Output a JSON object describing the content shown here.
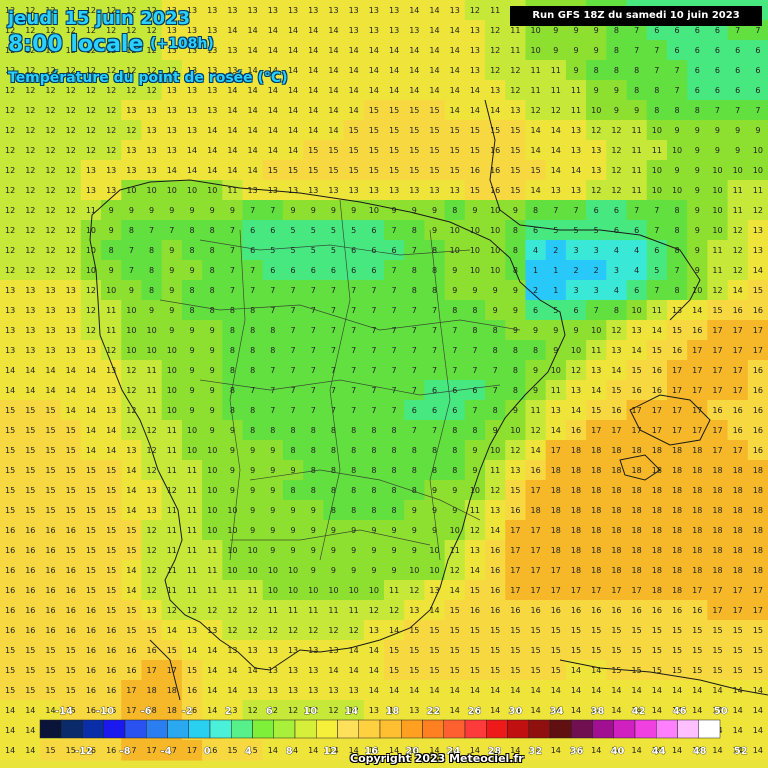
{
  "header": {
    "date": "jeudi 15 juin 2023",
    "time": "8:00 locale",
    "offset": "(+108h)",
    "variable": "Température du point de rosée (°C)",
    "run": "Run GFS 18Z du samedi 10 juin 2023"
  },
  "footer": {
    "copyright": "Copyright 2023 Meteociel.fr"
  },
  "legend": {
    "top_labels": [
      "-14",
      "-10",
      "-6",
      "-2",
      "2",
      "6",
      "10",
      "14",
      "18",
      "22",
      "26",
      "30",
      "34",
      "38",
      "42",
      "46",
      "50"
    ],
    "bottom_labels": [
      "-12",
      "-8",
      "-4",
      "0",
      "4",
      "8",
      "12",
      "16",
      "20",
      "24",
      "28",
      "32",
      "36",
      "40",
      "44",
      "48",
      "52"
    ],
    "colors": [
      "#0a1438",
      "#0b2a6a",
      "#0a2da8",
      "#1a1aee",
      "#2a52f0",
      "#2a7ef0",
      "#2aa8f0",
      "#2ad0f0",
      "#4af0d8",
      "#58f08a",
      "#7ef03a",
      "#a8f03a",
      "#d6f03a",
      "#f6f03a",
      "#ffe05a",
      "#ffd040",
      "#ffbf30",
      "#ffa020",
      "#ff8020",
      "#ff6030",
      "#ff3a3a",
      "#ee1a1a",
      "#c01010",
      "#901010",
      "#601010",
      "#701050",
      "#a01090",
      "#d020c0",
      "#f040e0",
      "#ff80ff",
      "#ffc0ff",
      "#ffffff"
    ]
  },
  "map": {
    "color_scale": [
      {
        "v": 1,
        "c": "#28c8f8"
      },
      {
        "v": 3,
        "c": "#3ae8d8"
      },
      {
        "v": 5,
        "c": "#48e880"
      },
      {
        "v": 7,
        "c": "#62e040"
      },
      {
        "v": 9,
        "c": "#8ee030"
      },
      {
        "v": 11,
        "c": "#c6e838"
      },
      {
        "v": 13,
        "c": "#eee43a"
      },
      {
        "v": 15,
        "c": "#f8d840"
      },
      {
        "v": 17,
        "c": "#f6b828"
      },
      {
        "v": 19,
        "c": "#f09818"
      }
    ],
    "rows": [
      "12 12 12 12 12 12 12 12 13 13 13 13 13 13 13 13 13 13 13 13 14 14 13 12 11 12 9 9 9 8 7 6 6 6 6 6 6 6",
      "12 12 12 12 12 12 12 12 13 13 13 14 14 14 14 14 14 13 13 13 13 14 14 13 12 11 10 9 9 9 8 7 6 6 6 6 7 7",
      "12 12 12 12 12 12 12 12 13 13 13 13 14 14 14 14 14 14 14 14 14 14 14 13 12 11 10 9 9 9 8 7 7 6 6 6 6 6",
      "12 12 12 12 12 12 12 12 12 13 13 13 14 14 14 14 14 14 14 14 14 14 14 13 12 12 11 11 9 8 8 8 7 7 6 6 6 6",
      "12 12 12 12 12 12 12 12 13 13 13 14 14 14 14 14 14 14 14 14 14 14 14 14 13 12 11 11 11 9 9 8 8 7 6 6 6 6",
      "12 12 12 12 12 12 13 13 13 13 13 14 14 14 14 14 14 14 15 15 15 15 14 14 14 13 12 12 11 10 9 9 8 8 8 7 7 7",
      "12 12 12 12 12 12 12 13 13 13 14 14 14 14 14 14 14 15 15 15 15 15 15 15 15 15 14 14 13 12 12 11 10 9 9 9 9 9",
      "12 12 12 12 12 12 13 13 13 14 14 14 14 14 14 15 15 15 15 15 15 15 15 15 16 15 14 14 13 13 12 11 11 10 9 9 9 10",
      "12 12 12 12 13 13 13 13 14 14 14 14 14 15 15 15 15 15 15 15 15 15 15 16 16 15 15 14 14 13 12 11 10 9 9 10 10 10",
      "12 12 12 12 13 13 10 10 10 10 10 11 13 13 13 13 13 13 13 13 13 13 13 15 16 15 14 13 13 12 12 11 10 10 9 10 11 11",
      "12 12 12 12 11 9 9 9 9 9 9 9 7 7 9 9 9 9 10 9 9 9 8 9 10 9 8 7 7 6 6 7 7 8 9 10 11 12",
      "12 12 12 12 10 9 8 7 7 8 8 7 6 6 5 5 5 5 6 7 8 9 10 10 10 8 6 5 5 5 6 6 7 8 9 10 12 13",
      "12 12 12 12 10 8 7 8 9 8 8 7 6 5 5 5 5 6 6 6 7 8 10 10 10 8 4 2 3 3 4 4 6 8 9 11 12 13",
      "12 12 12 12 10 9 7 8 9 9 8 7 7 6 6 6 6 6 6 7 8 8 9 10 10 8 1 1 2 2 3 4 5 7 9 11 12 14",
      "13 13 13 13 12 10 9 8 9 8 8 7 7 7 7 7 7 7 7 7 8 8 9 9 9 9 2 1 3 3 4 6 7 8 10 12 14 15",
      "13 13 13 13 12 11 10 9 9 8 8 8 8 7 7 7 7 7 7 7 7 7 8 8 9 9 6 5 6 7 8 10 11 13 14 15 16 16",
      "13 13 13 13 12 11 10 10 9 9 9 8 8 8 7 7 7 7 7 7 7 7 7 8 8 9 9 9 9 10 12 13 14 15 16 17 17 17",
      "13 13 13 13 13 12 10 10 10 9 9 8 8 8 7 7 7 7 7 7 7 7 7 7 8 8 8 9 10 11 13 14 15 16 17 17 17 17",
      "14 14 14 14 14 13 12 11 10 9 9 8 8 7 7 7 7 7 7 7 7 7 7 7 7 8 9 10 12 13 14 15 16 17 17 17 17 16",
      "14 14 14 14 14 13 12 11 10 9 9 8 7 7 7 7 7 7 7 7 7 6 6 6 7 8 9 11 13 14 15 16 16 17 17 17 17 16",
      "15 15 15 14 14 13 12 11 10 9 9 8 8 7 7 7 7 7 7 7 6 6 6 7 8 9 11 13 14 15 16 17 17 17 17 16 16 16",
      "15 15 15 15 14 14 12 12 11 10 9 9 8 8 8 8 8 8 8 8 7 7 8 8 9 10 12 14 16 17 17 17 17 17 17 17 16 16",
      "15 15 15 15 14 14 13 12 11 10 10 9 9 9 8 8 8 8 8 8 8 8 8 9 10 12 14 17 18 18 18 18 18 18 18 17 17 16",
      "15 15 15 15 15 15 14 12 11 11 10 9 9 9 9 8 8 8 8 8 8 8 8 9 11 13 16 18 18 18 18 18 18 18 18 18 18 18",
      "15 15 15 15 15 15 14 13 12 11 10 9 9 9 8 8 8 8 8 8 8 9 9 10 12 15 17 18 18 18 18 18 18 18 18 18 18 18",
      "15 15 15 15 15 15 14 13 11 11 10 10 9 9 9 9 8 8 8 8 9 9 9 11 13 16 18 18 18 18 18 18 18 18 18 18 18 18",
      "16 16 16 16 15 15 15 12 11 11 10 10 9 9 9 9 9 9 9 9 9 9 10 12 14 17 17 18 18 18 18 18 18 18 18 18 18 18",
      "16 16 16 15 15 15 15 12 11 11 11 10 10 9 9 9 9 9 9 9 9 10 11 13 16 17 17 18 18 18 18 18 18 18 18 18 18 18",
      "16 16 16 16 15 15 14 12 11 11 11 10 10 10 10 9 9 9 9 9 10 10 12 14 16 17 17 17 18 18 18 18 18 18 18 18 18 18",
      "16 16 16 16 15 15 14 12 11 11 11 11 11 10 10 10 10 10 10 11 12 13 14 15 16 17 17 17 17 17 17 17 18 18 17 17 17 17",
      "16 16 16 16 16 15 15 13 12 12 12 12 12 11 11 11 11 11 12 12 13 14 15 16 16 16 16 16 16 16 16 16 16 16 16 17 17 17",
      "16 16 16 16 16 16 15 15 14 13 13 12 12 12 12 12 12 12 13 14 15 15 15 15 15 15 15 15 15 15 15 15 15 15 15 15 15 15",
      "15 15 15 15 16 16 16 16 15 14 14 13 13 13 13 13 13 14 14 15 15 15 15 15 15 15 15 15 15 15 15 15 15 15 15 15 15 15",
      "15 15 15 15 16 16 16 17 17 15 14 14 14 13 13 13 14 14 14 15 15 15 15 15 15 15 15 15 14 14 15 15 15 15 15 15 15 15",
      "15 15 15 15 16 16 17 18 18 16 14 14 13 13 13 13 13 13 14 14 14 14 14 14 14 14 14 14 14 14 14 14 14 14 14 14 14 14",
      "14 14 14 15 16 16 17 18 18 16 14 13 12 12 12 12 12 12 13 13 13 13 14 14 14 14 14 14 14 14 14 14 14 14 14 14 14 14",
      "14 14 14 15 16 16 17 17 17 16 15 14 13 13 13 13 13 13 13 13 14 14 14 14 14 14 14 14 14 14 14 14 14 14 14 14 14 14",
      "14 14 15 15 16 16 17 17 17 17 16 15 15 14 14 14 14 14 14 14 14 14 14 14 14 14 14 14 14 14 14 14 14 14 14 14 14 14"
    ]
  }
}
